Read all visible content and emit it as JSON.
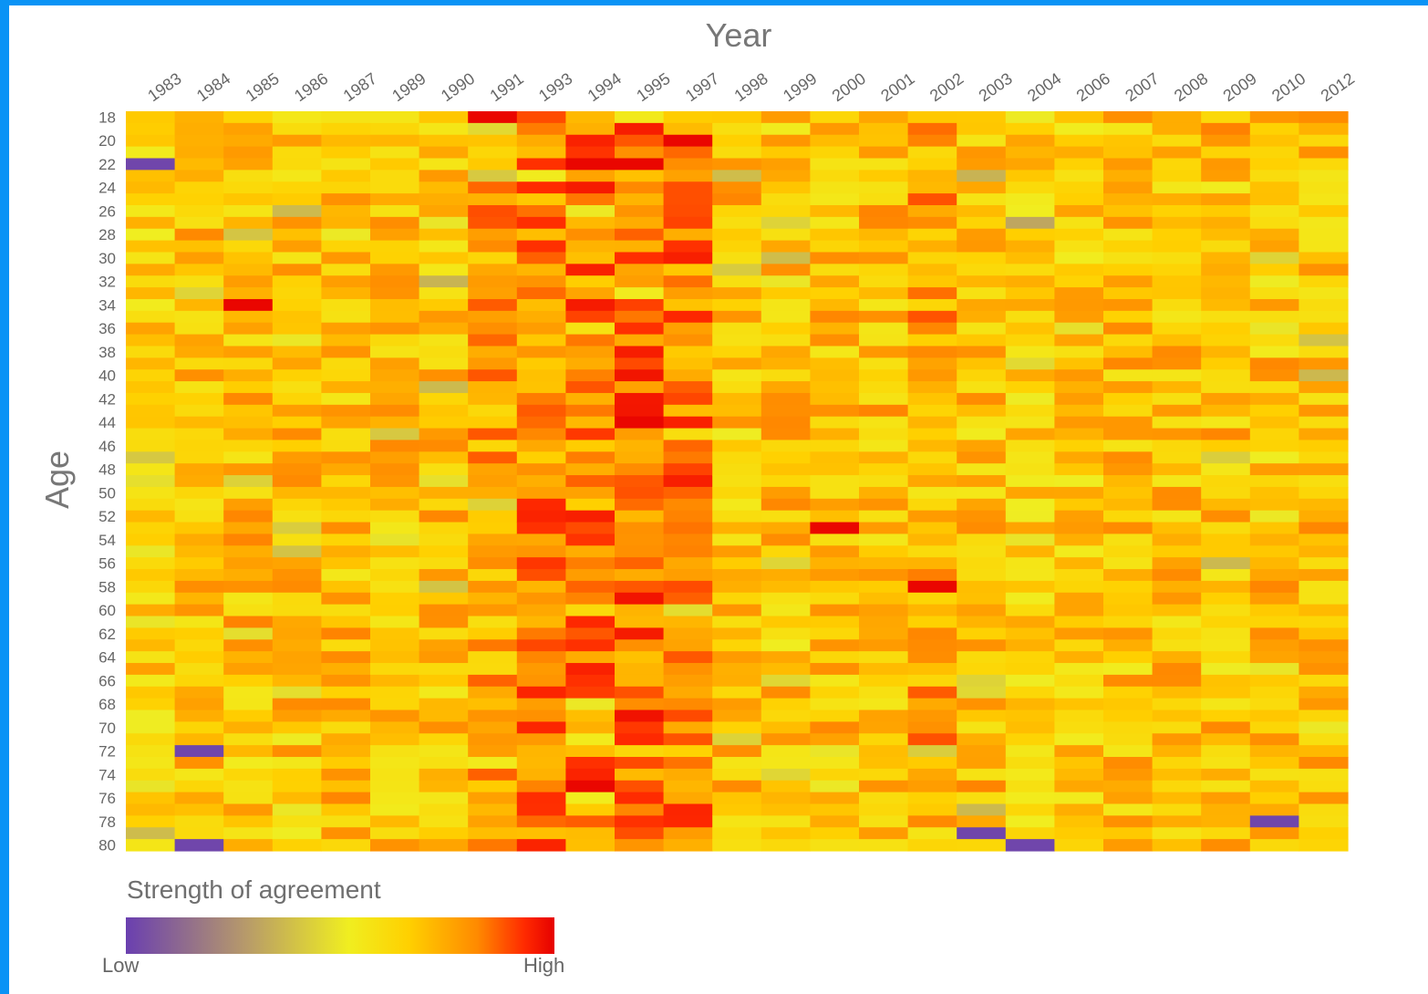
{
  "chart_data": {
    "type": "heatmap",
    "xlabel": "Year",
    "ylabel": "Age",
    "x_categories": [
      "1983",
      "1984",
      "1985",
      "1986",
      "1987",
      "1989",
      "1990",
      "1991",
      "1993",
      "1994",
      "1995",
      "1997",
      "1998",
      "1999",
      "2000",
      "2001",
      "2002",
      "2003",
      "2004",
      "2006",
      "2007",
      "2008",
      "2009",
      "2010",
      "2012"
    ],
    "y_ticks": [
      "18",
      "20",
      "22",
      "24",
      "26",
      "28",
      "30",
      "32",
      "34",
      "36",
      "38",
      "40",
      "42",
      "44",
      "46",
      "48",
      "50",
      "52",
      "54",
      "56",
      "58",
      "60",
      "62",
      "64",
      "66",
      "68",
      "70",
      "72",
      "74",
      "76",
      "78",
      "80"
    ],
    "age_range": [
      18,
      80
    ],
    "values_note": "",
    "colorscale": [
      "#6a3fb0",
      "#b79a6a",
      "#f0ee20",
      "#ffd000",
      "#ff8a00",
      "#ff2a00",
      "#e60000"
    ],
    "legend": {
      "title": "Strength of agreement",
      "low_label": "Low",
      "high_label": "High"
    },
    "highlights": [
      {
        "year": "1991",
        "age": 18,
        "level": "high"
      },
      {
        "year": "1994",
        "age": 22,
        "level": "high"
      },
      {
        "year": "1995",
        "age": 22,
        "level": "high"
      },
      {
        "year": "1997",
        "age": 20,
        "level": "high"
      },
      {
        "year": "1985",
        "age": 34,
        "level": "high"
      },
      {
        "year": "1995",
        "age": 44,
        "level": "high"
      },
      {
        "year": "1994",
        "age": 75,
        "level": "high"
      },
      {
        "year": "2000",
        "age": 53,
        "level": "high"
      },
      {
        "year": "2002",
        "age": 58,
        "level": "high"
      },
      {
        "year": "1984",
        "age": 72,
        "level": "low"
      },
      {
        "year": "1984",
        "age": 80,
        "level": "low"
      },
      {
        "year": "1983",
        "age": 22,
        "level": "low"
      },
      {
        "year": "2003",
        "age": 79,
        "level": "low"
      },
      {
        "year": "2004",
        "age": 80,
        "level": "low"
      },
      {
        "year": "2010",
        "age": 78,
        "level": "low"
      }
    ]
  }
}
